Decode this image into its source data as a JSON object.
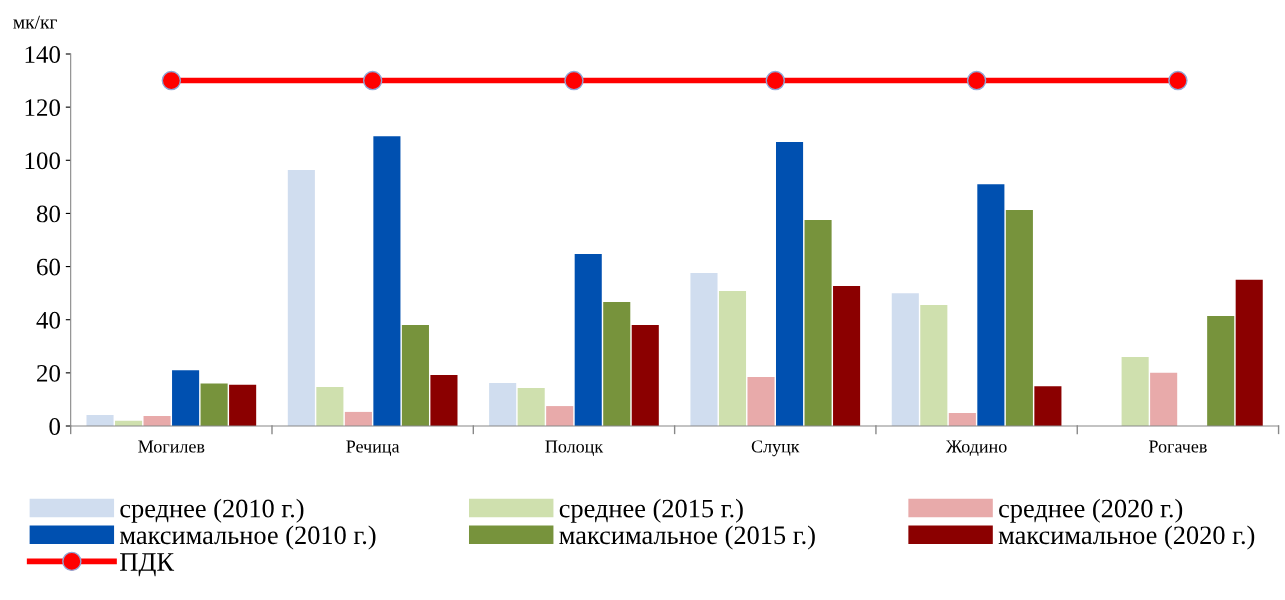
{
  "chart_data": {
    "type": "bar",
    "ylabel": "мк/кг",
    "categories": [
      "Могилев",
      "Речица",
      "Полоцк",
      "Слуцк",
      "Жодино",
      "Рогачев"
    ],
    "series": [
      {
        "name": "среднее (2010 г.)",
        "color": "#d0ddef",
        "values": [
          4.1,
          96.3,
          16.2,
          57.6,
          50,
          null
        ]
      },
      {
        "name": "среднее (2015 г.)",
        "color": "#cfe0ae",
        "values": [
          2,
          14.7,
          14.3,
          50.8,
          45.5,
          26
        ]
      },
      {
        "name": "среднее (2020 г.)",
        "color": "#e8aaaa",
        "values": [
          3.8,
          5.3,
          7.5,
          18.4,
          4.9,
          20
        ]
      },
      {
        "name": "максимальное (2010 г.)",
        "color": "#0050b0",
        "values": [
          21,
          109,
          64.7,
          106.9,
          91,
          null
        ]
      },
      {
        "name": "максимальное (2015 г.)",
        "color": "#77933c",
        "values": [
          16,
          38,
          46.7,
          77.5,
          81.3,
          41.4
        ]
      },
      {
        "name": "максимальное (2020 г.)",
        "color": "#8b0000",
        "values": [
          15.5,
          19.2,
          38,
          52.7,
          15,
          55
        ]
      },
      {
        "name": "ПДК",
        "type": "line",
        "color": "#ff0000",
        "marker": "circle",
        "values": [
          130,
          130,
          130,
          130,
          130,
          130
        ]
      }
    ],
    "ylim": [
      0,
      140
    ],
    "yticks": [
      0,
      20,
      40,
      60,
      80,
      100,
      120,
      140
    ],
    "grid": false,
    "legend": "bottom"
  }
}
